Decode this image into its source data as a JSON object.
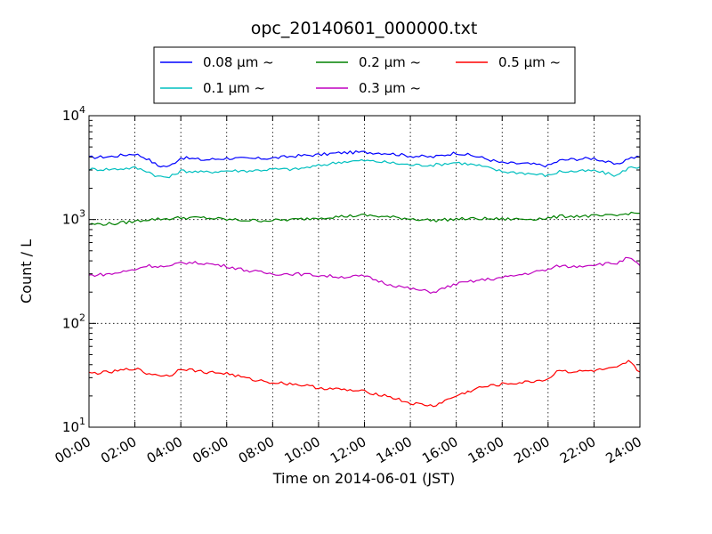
{
  "chart_data": {
    "type": "line",
    "title": "opc_20140601_000000.txt",
    "xlabel": "Time on 2014-06-01 (JST)",
    "ylabel": "Count / L",
    "yscale": "log",
    "ylim": [
      10,
      10000
    ],
    "xlim_hours": [
      0,
      24
    ],
    "grid": true,
    "legend_placement": "top-center, above plot",
    "x_tick_labels": [
      "00:00",
      "02:00",
      "04:00",
      "06:00",
      "08:00",
      "10:00",
      "12:00",
      "14:00",
      "16:00",
      "18:00",
      "20:00",
      "22:00",
      "24:00"
    ],
    "y_tick_labels": [
      {
        "base": "10",
        "exp": "1",
        "value": 10
      },
      {
        "base": "10",
        "exp": "2",
        "value": 100
      },
      {
        "base": "10",
        "exp": "3",
        "value": 1000
      },
      {
        "base": "10",
        "exp": "4",
        "value": 10000
      }
    ],
    "x_hours": [
      0,
      1,
      2,
      2.5,
      3,
      3.5,
      4,
      5,
      6,
      7,
      8,
      9,
      10,
      11,
      12,
      13,
      14,
      15,
      16,
      17,
      18,
      19,
      20,
      20.5,
      21,
      22,
      23,
      23.5,
      24
    ],
    "series": [
      {
        "name": "0.08 μm ~",
        "color": "#0000ff",
        "values": [
          3950,
          4050,
          4300,
          3900,
          3300,
          3250,
          3950,
          3750,
          3900,
          3850,
          3900,
          4100,
          4200,
          4400,
          4450,
          4350,
          4100,
          4000,
          4400,
          4000,
          3500,
          3450,
          3300,
          3700,
          3800,
          3900,
          3350,
          3900,
          4000
        ]
      },
      {
        "name": "0.1 μm ~",
        "color": "#00bfbf",
        "values": [
          3050,
          3050,
          3150,
          2950,
          2600,
          2550,
          2950,
          2850,
          2950,
          2950,
          3050,
          3050,
          3300,
          3600,
          3700,
          3550,
          3350,
          3350,
          3550,
          3300,
          2900,
          2800,
          2650,
          2900,
          2900,
          2950,
          2650,
          3150,
          3200
        ]
      },
      {
        "name": "0.2 μm ~",
        "color": "#008000",
        "values": [
          900,
          910,
          960,
          1000,
          1010,
          1020,
          1040,
          1040,
          1000,
          980,
          980,
          1000,
          1040,
          1070,
          1100,
          1060,
          1020,
          980,
          1010,
          1020,
          1010,
          1010,
          1030,
          1070,
          1080,
          1080,
          1090,
          1150,
          1150
        ]
      },
      {
        "name": "0.3 μm ~",
        "color": "#bf00bf",
        "values": [
          290,
          300,
          330,
          360,
          355,
          350,
          385,
          380,
          355,
          320,
          300,
          300,
          290,
          280,
          285,
          240,
          215,
          200,
          240,
          260,
          275,
          300,
          330,
          360,
          350,
          370,
          380,
          430,
          360
        ]
      },
      {
        "name": "0.5 μm ~",
        "color": "#ff0000",
        "values": [
          33,
          34,
          37,
          33,
          32,
          31,
          37,
          34,
          33,
          29,
          27,
          26,
          24,
          23,
          22,
          20,
          17,
          16,
          20,
          24,
          26,
          27,
          29,
          36,
          34,
          35,
          37,
          43,
          34
        ]
      }
    ]
  }
}
